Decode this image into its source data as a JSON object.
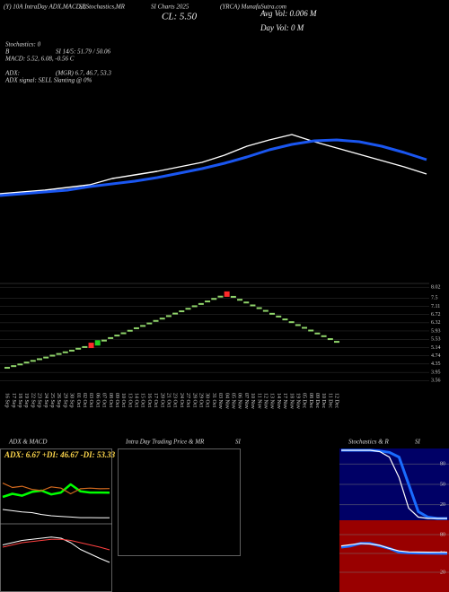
{
  "header": {
    "title_parts": [
      "(Y) 10A IntraDay ADX,MACD,B",
      "SI,Stochastics,MR",
      "SI Charts 2025",
      "(YRCA) MunafaSutra.com"
    ],
    "close": "CL: 5.50",
    "avg_vol": "Avg Vol: 0.006  M",
    "day_vol": "Day Vol: 0  M",
    "info": [
      "Stochastics: 0",
      "B",
      "SI 14/5: 51.79 / 50.06",
      "MACD: 5.52, 6.08, -0.56  C",
      "ADX:",
      "(MGR) 6.7, 46.7, 53.3",
      "ADX  signal: SELL Slanting @ 0%"
    ],
    "panel_titles": [
      "ADX  & MACD",
      "Intra  Day Trading Price  & MR",
      "SI",
      "Stochastics & R",
      "SI"
    ]
  },
  "chart_data": [
    {
      "type": "line",
      "categories": [
        null,
        null,
        null,
        null,
        null,
        null,
        null,
        null,
        null,
        null,
        null,
        null,
        null,
        null,
        null,
        null,
        null,
        null,
        null,
        null
      ],
      "ylim": [
        0,
        100
      ],
      "series": [
        {
          "color": "#ffffff",
          "values": [
            15.6,
            17.8,
            20,
            23.3,
            26.7,
            34.4,
            38.9,
            43.3,
            48.9,
            54.4,
            63.3,
            74.4,
            82.2,
            88.9,
            80,
            72.2,
            64.4,
            56.7,
            48.9,
            40
          ]
        },
        {
          "color": "#1a56f0",
          "values": [
            13.3,
            15.6,
            17.8,
            20,
            24.4,
            27.8,
            31.1,
            35.6,
            41.1,
            46.7,
            53.3,
            61.1,
            70,
            76.7,
            81.1,
            82.2,
            80,
            74.4,
            66.7,
            57.8
          ]
        }
      ]
    },
    {
      "type": "dash",
      "categories": [
        "16 Sep",
        "17 Sep",
        "18 Sep",
        "19 Sep",
        "22 Sep",
        "23 Sep",
        "24 Sep",
        "25 Sep",
        "26 Sep",
        "29 Sep",
        "30 Sep",
        "01 Oct",
        "02 Oct",
        "03 Oct",
        "06 Oct",
        "07 Oct",
        "08 Oct",
        "09 Oct",
        "10 Oct",
        "13 Oct",
        "14 Oct",
        "15 Oct",
        "16 Oct",
        "17 Oct",
        "20 Oct",
        "21 Oct",
        "23 Oct",
        "24 Oct",
        "27 Oct",
        "28 Oct",
        "29 Oct",
        "30 Oct",
        "31 Oct",
        "03 Nov",
        "04 Nov",
        "05 Nov",
        "06 Nov",
        "07 Nov",
        "10 Nov",
        "11 Nov",
        "12 Nov",
        "13 Nov",
        "14 Nov",
        "17 Nov",
        "18 Nov",
        "19 Nov",
        "05 Dec",
        "08 Dec",
        "09 Dec",
        "10 Dec",
        "11 Dec",
        "12 Dec"
      ],
      "ylim": [
        3.4,
        8.2
      ],
      "yticks": [
        8.02,
        7.5,
        7.11,
        6.72,
        6.32,
        5.93,
        5.53,
        5.14,
        4.74,
        4.35,
        3.95,
        3.56
      ],
      "grid": true,
      "series": [
        {
          "color": "#8fd46a",
          "values": [
            4.17,
            4.25,
            4.33,
            4.42,
            4.5,
            4.58,
            4.66,
            4.75,
            4.83,
            4.91,
            4.99,
            5.08,
            5.16,
            5.24,
            5.36,
            5.47,
            5.59,
            5.71,
            5.82,
            5.94,
            6.06,
            6.17,
            6.29,
            6.41,
            6.52,
            6.64,
            6.76,
            6.87,
            6.99,
            7.11,
            7.22,
            7.34,
            7.46,
            7.57,
            7.69,
            7.56,
            7.42,
            7.29,
            7.15,
            7.02,
            6.89,
            6.75,
            6.62,
            6.48,
            6.35,
            6.21,
            6.08,
            5.95,
            5.81,
            5.68,
            5.54,
            5.41
          ],
          "point_colors": [
            "#8fd46a",
            "#8fd46a",
            "#8fd46a",
            "#8fd46a",
            "#8fd46a",
            "#8fd46a",
            "#8fd46a",
            "#8fd46a",
            "#8fd46a",
            "#8fd46a",
            "#8fd46a",
            "#8fd46a",
            "#8fd46a",
            "#ff2a2a",
            "#22cc22",
            "#8fd46a",
            "#8fd46a",
            "#8fd46a",
            "#8fd46a",
            "#8fd46a",
            "#8fd46a",
            "#8fd46a",
            "#8fd46a",
            "#8fd46a",
            "#8fd46a",
            "#8fd46a",
            "#8fd46a",
            "#8fd46a",
            "#8fd46a",
            "#8fd46a",
            "#8fd46a",
            "#8fd46a",
            "#8fd46a",
            "#8fd46a",
            "#ff2a2a",
            "#8fd46a",
            "#8fd46a",
            "#8fd46a",
            "#8fd46a",
            "#8fd46a",
            "#8fd46a",
            "#8fd46a",
            "#8fd46a",
            "#8fd46a",
            "#8fd46a",
            "#8fd46a",
            "#8fd46a",
            "#8fd46a",
            "#8fd46a",
            "#8fd46a",
            "#8fd46a",
            "#8fd46a"
          ]
        }
      ]
    },
    {
      "type": "line",
      "annotation": "ADX: 6.67 +DI: 46.67 -DI: 53.33",
      "categories": [
        null,
        null,
        null,
        null,
        null,
        null,
        null,
        null,
        null,
        null,
        null,
        null
      ],
      "ylim": [
        0,
        100
      ],
      "series": [
        {
          "color": "#00ff00",
          "values": [
            40,
            45,
            42,
            48,
            50,
            44,
            47,
            60,
            49,
            47,
            47,
            46.67
          ]
        },
        {
          "color": "#d2691e",
          "values": [
            62,
            55,
            57,
            52,
            50,
            56,
            54,
            45,
            53,
            54,
            53,
            53.33
          ]
        },
        {
          "color": "#ffffff",
          "values": [
            20,
            18,
            16,
            15,
            12,
            10,
            9,
            8,
            7,
            7,
            6.8,
            6.67
          ]
        }
      ]
    },
    {
      "type": "line",
      "categories": [
        null,
        null,
        null,
        null,
        null,
        null,
        null,
        null,
        null,
        null,
        null,
        null
      ],
      "ylim": [
        5,
        7
      ],
      "series": [
        {
          "color": "#ffffff",
          "values": [
            6.3,
            6.4,
            6.5,
            6.55,
            6.6,
            6.65,
            6.6,
            6.4,
            6.1,
            5.9,
            5.7,
            5.52
          ]
        },
        {
          "color": "#ff4040",
          "values": [
            6.2,
            6.3,
            6.4,
            6.45,
            6.5,
            6.55,
            6.55,
            6.5,
            6.4,
            6.3,
            6.2,
            6.08
          ]
        }
      ]
    },
    {
      "type": "line",
      "categories": [
        null,
        null,
        null,
        null,
        null,
        null,
        null,
        null,
        null,
        null,
        null,
        null
      ],
      "ylim": [
        0,
        100
      ],
      "yticks": [
        80,
        50,
        20
      ],
      "grid": true,
      "series": [
        {
          "color": "#1a6cff",
          "values": [
            100,
            100,
            100,
            100,
            99,
            97,
            90,
            50,
            10,
            2,
            0,
            0
          ]
        },
        {
          "color": "#ffffff",
          "values": [
            100,
            100,
            100,
            100,
            98,
            90,
            60,
            15,
            2,
            0,
            0,
            0
          ]
        }
      ]
    },
    {
      "type": "line",
      "categories": [
        null,
        null,
        null,
        null,
        null,
        null,
        null,
        null,
        null,
        null,
        null,
        null
      ],
      "ylim": [
        0,
        100
      ],
      "yticks": [
        80,
        50,
        20
      ],
      "grid": true,
      "series": [
        {
          "color": "#1a6cff",
          "values": [
            60,
            62,
            66,
            66,
            62,
            58,
            52,
            50.8,
            50.5,
            50.3,
            50.2,
            50.06
          ]
        },
        {
          "color": "#ffffff",
          "values": [
            62,
            64,
            66,
            65,
            63,
            58,
            54,
            52.5,
            52.2,
            52,
            51.9,
            51.79
          ]
        }
      ]
    }
  ]
}
